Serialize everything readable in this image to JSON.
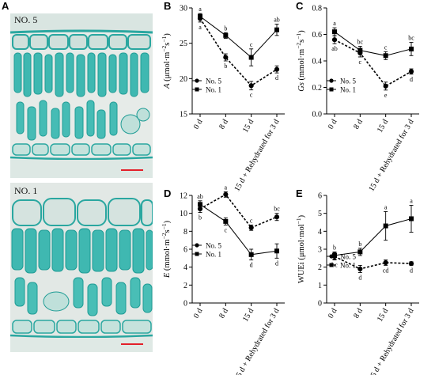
{
  "panels": {
    "A": {
      "letter": "A",
      "images": [
        {
          "label": "NO. 5"
        },
        {
          "label": "NO. 1"
        }
      ]
    }
  },
  "chart_data": [
    {
      "letter": "B",
      "type": "line",
      "categories": [
        "0 d",
        "8 d",
        "15 d",
        "15 d + Rehydrated for 3 d"
      ],
      "ylabel": "A (μmol·m⁻²s⁻¹)",
      "ylabel_italic": "A",
      "ylabel_rest": " (μmol·m",
      "ylabel_sup1": "−2",
      "ylabel_mid": "s",
      "ylabel_sup2": "−1",
      "ylabel_end": ")",
      "ylim": [
        15,
        30
      ],
      "yticks": [
        15,
        20,
        25,
        30
      ],
      "legend_position": "bottom-left",
      "series": [
        {
          "name": "No. 5",
          "marker": "circle",
          "dash": "dashed",
          "values": [
            28.5,
            23.0,
            19.0,
            21.3
          ],
          "errors": [
            0.5,
            0.5,
            0.6,
            0.5
          ],
          "letters": [
            "a",
            "b",
            "c",
            "d"
          ]
        },
        {
          "name": "No. 1",
          "marker": "square",
          "dash": "solid",
          "values": [
            28.8,
            26.1,
            23.0,
            26.9
          ],
          "errors": [
            0.4,
            0.4,
            1.2,
            0.8
          ],
          "letters": [
            "a",
            "b",
            "c",
            "ab"
          ]
        }
      ]
    },
    {
      "letter": "C",
      "type": "line",
      "categories": [
        "0 d",
        "8 d",
        "15 d",
        "15 d + Rehydrated for 3 d"
      ],
      "ylabel": "Gs (mmol·m⁻²s⁻¹)",
      "ylabel_italic": "Gs",
      "ylabel_rest": " (mmol·m",
      "ylabel_sup1": "−2",
      "ylabel_mid": "s",
      "ylabel_sup2": "−1",
      "ylabel_end": ")",
      "ylim": [
        0.0,
        0.8
      ],
      "yticks": [
        0.0,
        0.2,
        0.4,
        0.6,
        0.8
      ],
      "legend_position": "bottom-left",
      "series": [
        {
          "name": "No. 5",
          "marker": "circle",
          "dash": "dashed",
          "values": [
            0.56,
            0.46,
            0.21,
            0.32
          ],
          "errors": [
            0.03,
            0.03,
            0.03,
            0.02
          ],
          "letters": [
            "ab",
            "c",
            "e",
            "d"
          ]
        },
        {
          "name": "No. 1",
          "marker": "square",
          "dash": "solid",
          "values": [
            0.62,
            0.48,
            0.44,
            0.49
          ],
          "errors": [
            0.03,
            0.03,
            0.03,
            0.05
          ],
          "letters": [
            "a",
            "bc",
            "c",
            "bc"
          ]
        }
      ]
    },
    {
      "letter": "D",
      "type": "line",
      "categories": [
        "0 d",
        "8 d",
        "15 d",
        "15 d + Rehydrated for 3 d"
      ],
      "ylabel": "E (mmol·m⁻²s⁻¹)",
      "ylabel_italic": "E",
      "ylabel_rest": " (mmol·m",
      "ylabel_sup1": "−2",
      "ylabel_mid": "s",
      "ylabel_sup2": "−1",
      "ylabel_end": ")",
      "ylim": [
        0,
        12
      ],
      "yticks": [
        0,
        2,
        4,
        6,
        8,
        10,
        12
      ],
      "legend_position": "bottom-left",
      "series": [
        {
          "name": "No. 5",
          "marker": "circle",
          "dash": "dashed",
          "values": [
            10.5,
            12.1,
            8.4,
            9.6
          ],
          "errors": [
            0.4,
            0.3,
            0.3,
            0.4
          ],
          "letters": [
            "b",
            "a",
            "c",
            "bc"
          ]
        },
        {
          "name": "No. 1",
          "marker": "square",
          "dash": "solid",
          "values": [
            11.0,
            9.1,
            5.4,
            5.8
          ],
          "errors": [
            0.4,
            0.4,
            0.6,
            0.8
          ],
          "letters": [
            "ab",
            "c",
            "d",
            "d"
          ]
        }
      ]
    },
    {
      "letter": "E",
      "type": "line",
      "categories": [
        "0 d",
        "8 d",
        "15 d",
        "15 d + Rehydrated for 3 d"
      ],
      "ylabel": "WUEi (μmol·mol⁻¹)",
      "ylabel_italic": "",
      "ylabel_rest": "WUEi (μmol·mol",
      "ylabel_sup1": "−1",
      "ylabel_mid": "",
      "ylabel_sup2": "",
      "ylabel_end": ")",
      "ylim": [
        0,
        6
      ],
      "yticks": [
        0,
        1,
        2,
        3,
        4,
        5,
        6
      ],
      "legend_position": "bottom-left",
      "series": [
        {
          "name": "No. 5",
          "marker": "circle",
          "dash": "dashed",
          "values": [
            2.6,
            1.9,
            2.25,
            2.2
          ],
          "errors": [
            0.2,
            0.2,
            0.15,
            0.1
          ],
          "letters": [
            "bc",
            "d",
            "cd",
            "d"
          ]
        },
        {
          "name": "No. 1",
          "marker": "square",
          "dash": "solid",
          "values": [
            2.65,
            2.85,
            4.3,
            4.7
          ],
          "errors": [
            0.2,
            0.2,
            0.8,
            0.75
          ],
          "letters": [
            "b",
            "b",
            "a",
            "a"
          ]
        }
      ]
    }
  ]
}
